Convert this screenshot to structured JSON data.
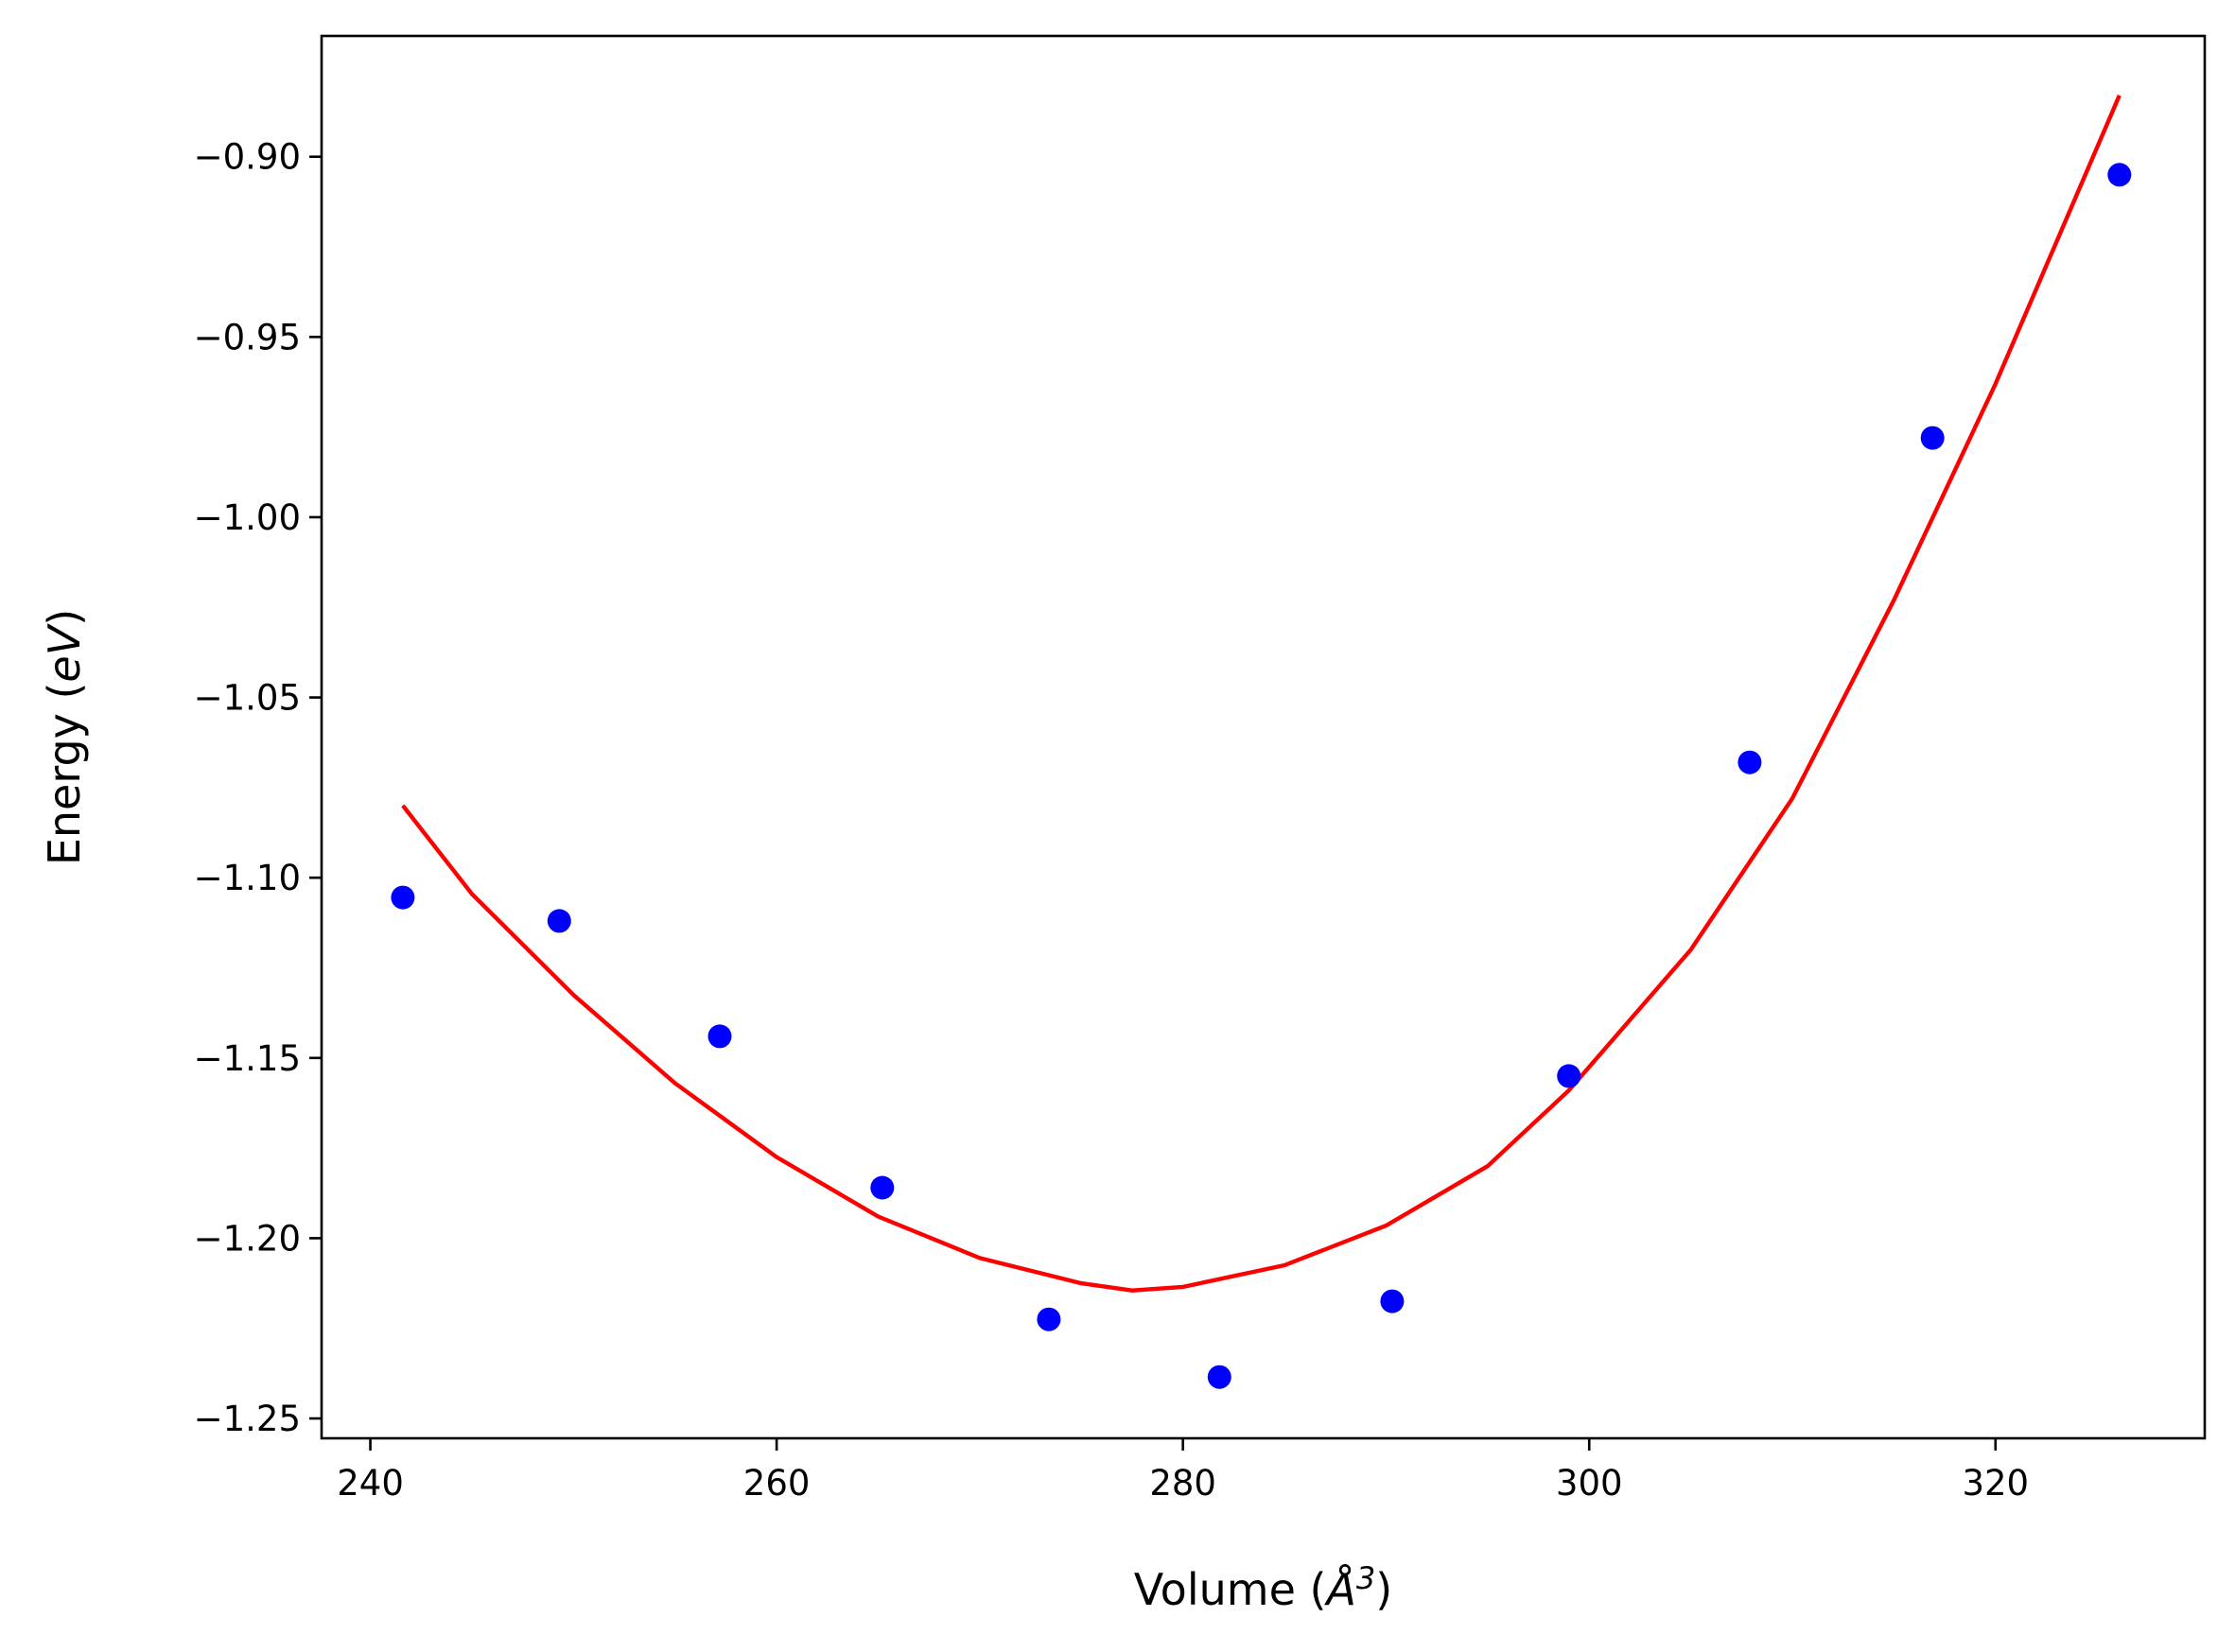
{
  "chart_data": {
    "type": "scatter",
    "xlabel_prefix": "Volume (",
    "xlabel_unit": "Å",
    "xlabel_exp": "3",
    "xlabel_suffix": ")",
    "ylabel_prefix": "Energy (",
    "ylabel_unit": "eV",
    "ylabel_suffix": ")",
    "xlim": [
      237.6,
      330.3
    ],
    "ylim": [
      -1.2555,
      -0.8665
    ],
    "xticks": [
      240,
      260,
      280,
      300,
      320
    ],
    "xtick_labels": [
      "240",
      "260",
      "280",
      "300",
      "320"
    ],
    "yticks": [
      -1.25,
      -1.2,
      -1.15,
      -1.1,
      -1.05,
      -1.0,
      -0.95,
      -0.9
    ],
    "ytick_labels": [
      "−1.25",
      "−1.20",
      "−1.15",
      "−1.10",
      "−1.05",
      "−1.00",
      "−0.95",
      "−0.90"
    ],
    "grid": false,
    "series": [
      {
        "kind": "points",
        "color": "#0000ff",
        "x": [
          241.6,
          249.3,
          257.2,
          265.2,
          273.4,
          281.8,
          290.3,
          299.0,
          307.9,
          316.9,
          326.1
        ],
        "y": [
          -1.1055,
          -1.112,
          -1.144,
          -1.186,
          -1.2225,
          -1.2385,
          -1.2175,
          -1.155,
          -1.068,
          -0.978,
          -0.905
        ]
      },
      {
        "kind": "fit",
        "color": "#ff0000",
        "x": [
          241.6,
          245.0,
          250.0,
          255.0,
          260.0,
          265.0,
          270.0,
          275.0,
          277.5,
          280.0,
          285.0,
          290.0,
          295.0,
          299.0,
          305.0,
          310.0,
          315.0,
          320.0,
          326.1
        ],
        "y": [
          -1.08,
          -1.1045,
          -1.1325,
          -1.157,
          -1.1775,
          -1.194,
          -1.2055,
          -1.2125,
          -1.2145,
          -1.2135,
          -1.2075,
          -1.1965,
          -1.18,
          -1.159,
          -1.12,
          -1.078,
          -1.023,
          -0.963,
          -0.883
        ]
      }
    ]
  }
}
